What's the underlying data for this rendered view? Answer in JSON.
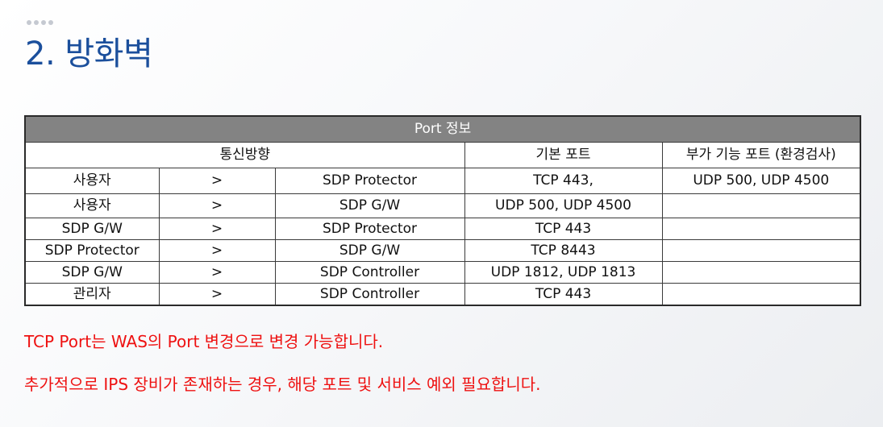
{
  "slide": {
    "title": "2. 방화벽",
    "table": {
      "caption": "Port 정보",
      "headers": [
        "통신방향",
        "기본 포트",
        "부가 기능 포트 (환경검사)"
      ],
      "rows": [
        {
          "src": "사용자",
          "arrow": ">",
          "dst": "SDP Protector",
          "base": "TCP 443,",
          "extra": "UDP 500, UDP 4500"
        },
        {
          "src": "사용자",
          "arrow": ">",
          "dst": "SDP G/W",
          "base": "UDP 500, UDP 4500",
          "extra": ""
        },
        {
          "src": "SDP G/W",
          "arrow": ">",
          "dst": "SDP Protector",
          "base": "TCP 443",
          "extra": ""
        },
        {
          "src": "SDP Protector",
          "arrow": ">",
          "dst": "SDP G/W",
          "base": "TCP 8443",
          "extra": ""
        },
        {
          "src": "SDP G/W",
          "arrow": ">",
          "dst": "SDP Controller",
          "base": "UDP 1812, UDP 1813",
          "extra": ""
        },
        {
          "src": "관리자",
          "arrow": ">",
          "dst": "SDP Controller",
          "base": "TCP 443",
          "extra": ""
        }
      ]
    },
    "notes": [
      "TCP Port는 WAS의 Port 변경으로 변경 가능합니다.",
      "추가적으로 IPS 장비가 존재하는 경우, 해당 포트 및 서비스 예외 필요합니다."
    ]
  }
}
